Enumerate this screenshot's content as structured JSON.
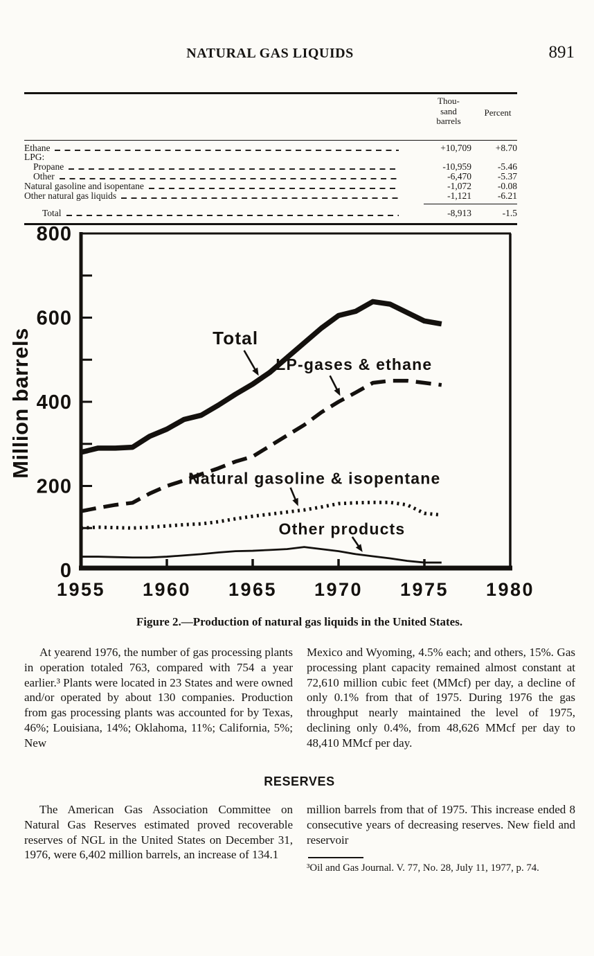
{
  "header": {
    "title": "NATURAL GAS LIQUIDS",
    "page_number": "891"
  },
  "table": {
    "col1_header": "Thou-\nsand\nbarrels",
    "col2_header": "Percent",
    "rows": [
      {
        "label": "Ethane",
        "indent": 0,
        "values": [
          "+10,709",
          "+8.70"
        ]
      },
      {
        "label": "LPG:",
        "indent": 0,
        "values": null
      },
      {
        "label": "Propane",
        "indent": 1,
        "values": [
          "-10,959",
          "-5.46"
        ]
      },
      {
        "label": "Other",
        "indent": 1,
        "values": [
          "-6,470",
          "-5.37"
        ]
      },
      {
        "label": "Natural gasoline and isopentane",
        "indent": 0,
        "values": [
          "-1,072",
          "-0.08"
        ]
      },
      {
        "label": "Other natural gas liquids",
        "indent": 0,
        "values": [
          "-1,121",
          "-6.21"
        ]
      }
    ],
    "total": {
      "label": "Total",
      "values": [
        "-8,913",
        "-1.5"
      ]
    }
  },
  "chart_data": {
    "type": "line",
    "title": "Figure 2.—Production of natural gas liquids in the United States.",
    "xlabel": "",
    "ylabel": "Million barrels",
    "xlim": [
      1955,
      1980
    ],
    "ylim": [
      0,
      800
    ],
    "x_tick_labels": [
      1955,
      1960,
      1965,
      1970,
      1975,
      1980
    ],
    "y_tick_labels": [
      0,
      200,
      400,
      600,
      800
    ],
    "y_minor_ticks": [
      100,
      200,
      300,
      400,
      500,
      600,
      700
    ],
    "x_minor_ticks": [
      1960,
      1965,
      1970,
      1975
    ],
    "grid": false,
    "legend_position": "inline-annotations",
    "x": [
      1955,
      1956,
      1957,
      1958,
      1959,
      1960,
      1961,
      1962,
      1963,
      1964,
      1965,
      1966,
      1967,
      1968,
      1969,
      1970,
      1971,
      1972,
      1973,
      1974,
      1975,
      1976
    ],
    "series": [
      {
        "name": "Total",
        "line_style": "solid-thick",
        "values": [
          280,
          290,
          290,
          292,
          318,
          335,
          358,
          368,
          392,
          418,
          442,
          470,
          505,
          540,
          575,
          605,
          615,
          638,
          632,
          612,
          592,
          585
        ]
      },
      {
        "name": "LP-gases & ethane",
        "line_style": "dashed",
        "values": [
          140,
          148,
          155,
          160,
          182,
          200,
          213,
          228,
          242,
          258,
          270,
          295,
          320,
          345,
          375,
          400,
          422,
          445,
          450,
          450,
          445,
          440
        ]
      },
      {
        "name": "Natural gasoline & isopentane",
        "line_style": "dotted",
        "values": [
          100,
          102,
          101,
          100,
          102,
          105,
          108,
          110,
          115,
          122,
          128,
          133,
          138,
          143,
          150,
          158,
          160,
          161,
          161,
          155,
          135,
          131
        ]
      },
      {
        "name": "Other products",
        "line_style": "solid-thin",
        "values": [
          32,
          32,
          31,
          30,
          30,
          32,
          35,
          38,
          42,
          45,
          46,
          48,
          50,
          55,
          50,
          45,
          38,
          33,
          28,
          22,
          18,
          18
        ]
      }
    ],
    "annotations": [
      {
        "label": "Total",
        "text_at": [
          1964.0,
          550
        ],
        "arrow_from": [
          1964.5,
          522
        ],
        "arrow_to": [
          1965.35,
          462
        ]
      },
      {
        "label": "LP-gases & ethane",
        "text_at": [
          1970.9,
          489
        ],
        "arrow_from": [
          1969.5,
          462
        ],
        "arrow_to": [
          1970.1,
          414
        ]
      },
      {
        "label": "Natural gasoline & isopentane",
        "text_at": [
          1968.6,
          218
        ],
        "arrow_from": [
          1967.2,
          196
        ],
        "arrow_to": [
          1967.65,
          152
        ]
      },
      {
        "label": "Other products",
        "text_at": [
          1970.2,
          98
        ],
        "arrow_from": [
          1970.8,
          79
        ],
        "arrow_to": [
          1971.4,
          43
        ]
      }
    ]
  },
  "caption": "Figure 2.—Production of natural gas liquids in the United States.",
  "body": {
    "col1_p1": "At yearend 1976, the number of gas processing plants in operation totaled 763, compared with 754 a year earlier.³ Plants were located in 23 States and were owned and/or operated by about 130 companies. Production from gas processing plants was accounted for by Texas, 46%; Louisiana, 14%; Oklahoma, 11%; California, 5%; New",
    "col2_p1": "Mexico and Wyoming, 4.5% each; and others, 15%. Gas processing plant capacity remained almost constant at 72,610 million cubic feet (MMcf) per day, a decline of only 0.1% from that of 1975. During 1976 the gas throughput nearly maintained the level of 1975, declining only 0.4%, from 48,626 MMcf per day to 48,410 MMcf per day.",
    "section_heading": "RESERVES",
    "col1_p2": "The American Gas Association Committee on Natural Gas Reserves estimated proved recoverable reserves of NGL in the United States on December 31, 1976, were 6,402 million barrels, an increase of 134.1",
    "col2_p2": "million barrels from that of 1975. This increase ended 8 consecutive years of decreasing reserves. New field and reservoir",
    "footnote": "³Oil and Gas Journal. V. 77, No. 28, July 11, 1977, p. 74."
  }
}
